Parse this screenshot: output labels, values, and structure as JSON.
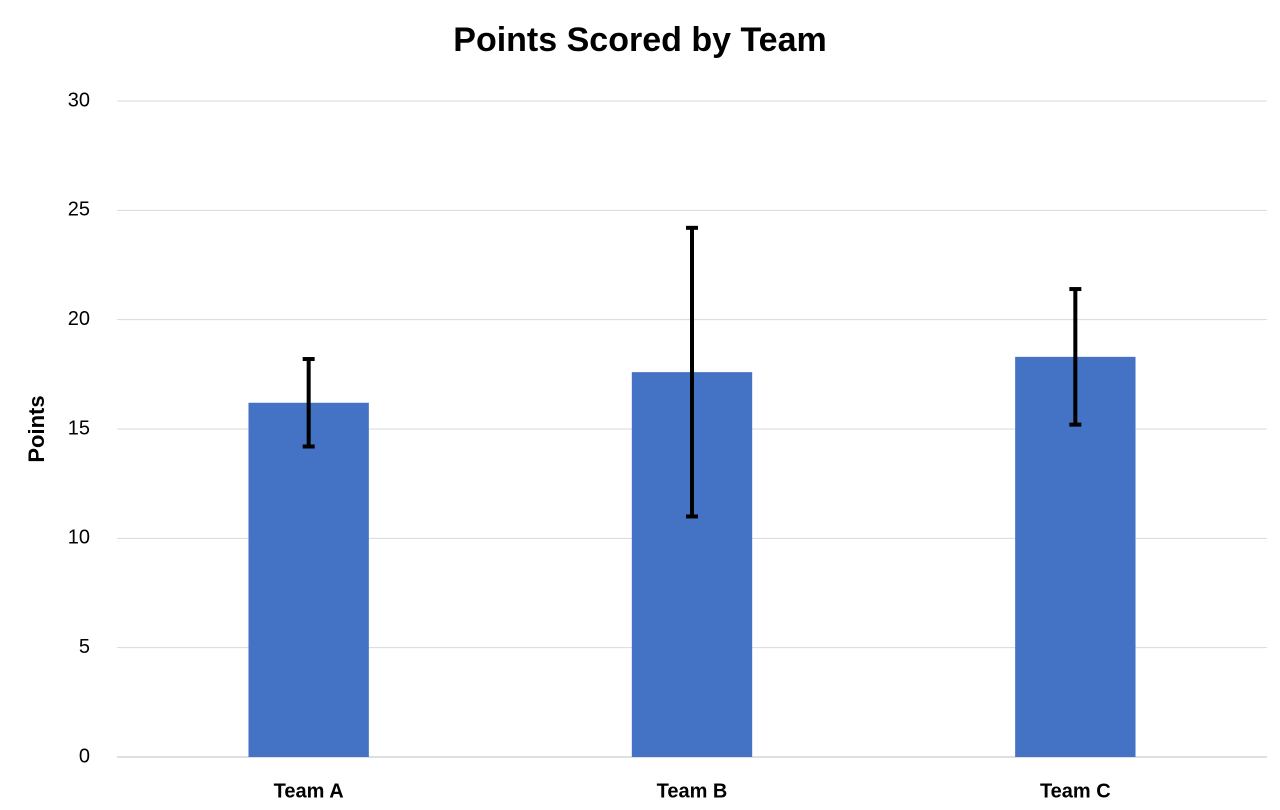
{
  "chart_data": {
    "type": "bar",
    "title": "Points Scored by Team",
    "y_label": "Points",
    "categories": [
      "Team A",
      "Team B",
      "Team C"
    ],
    "values": [
      16.2,
      17.6,
      18.3
    ],
    "errors": [
      2.0,
      6.6,
      3.1
    ],
    "color": "#4472c4",
    "ylim": [
      0,
      30
    ],
    "yticks": [
      0,
      5,
      10,
      15,
      20,
      25,
      30
    ],
    "grid": true
  }
}
